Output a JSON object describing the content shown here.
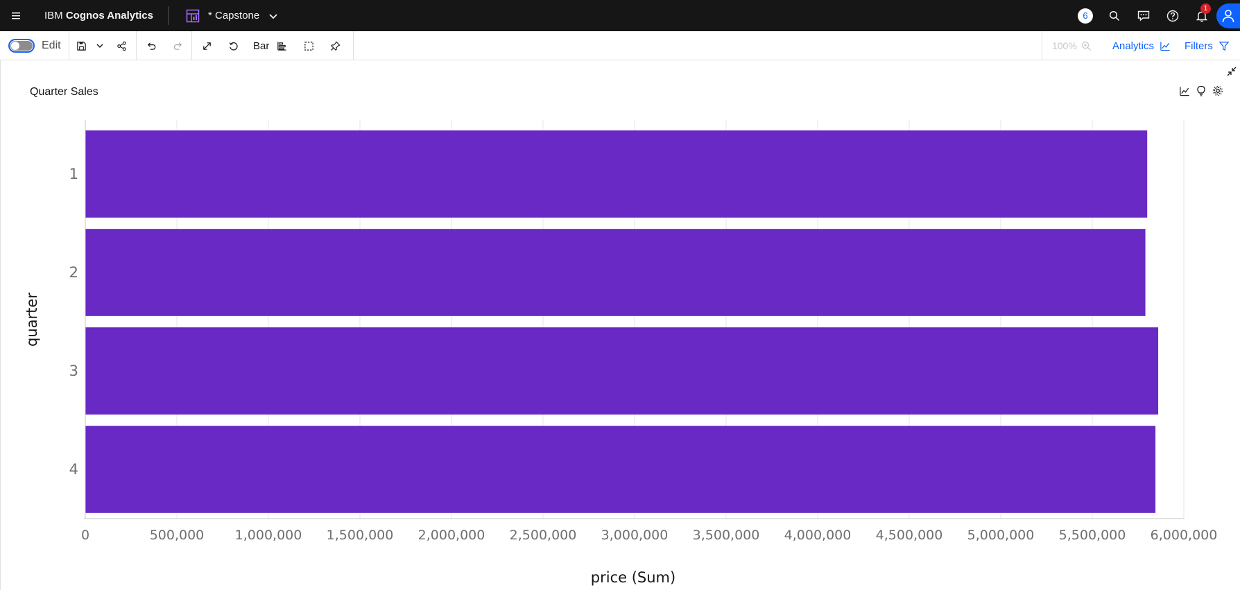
{
  "header": {
    "brand_prefix": "IBM",
    "brand_name": "Cognos Analytics",
    "document_title": "* Capstone",
    "count_badge": "6",
    "notification_count": "1"
  },
  "toolbar": {
    "edit_label": "Edit",
    "visualization_type_label": "Bar",
    "zoom_label": "100%",
    "analytics_label": "Analytics",
    "filters_label": "Filters"
  },
  "widget": {
    "title": "Quarter Sales"
  },
  "chart_data": {
    "type": "bar",
    "orientation": "horizontal",
    "color": "#6929c4",
    "categories": [
      "1",
      "2",
      "3",
      "4"
    ],
    "values": [
      5800000,
      5790000,
      5860000,
      5845000
    ],
    "xlabel": "price (Sum)",
    "ylabel": "quarter",
    "xlim": [
      0,
      6000000
    ],
    "xticks": [
      0,
      500000,
      1000000,
      1500000,
      2000000,
      2500000,
      3000000,
      3500000,
      4000000,
      4500000,
      5000000,
      5500000,
      6000000
    ],
    "xtick_labels": [
      "0",
      "500,000",
      "1,000,000",
      "1,500,000",
      "2,000,000",
      "2,500,000",
      "3,000,000",
      "3,500,000",
      "4,000,000",
      "4,500,000",
      "5,000,000",
      "5,500,000",
      "6,000,000"
    ],
    "grid": true
  }
}
